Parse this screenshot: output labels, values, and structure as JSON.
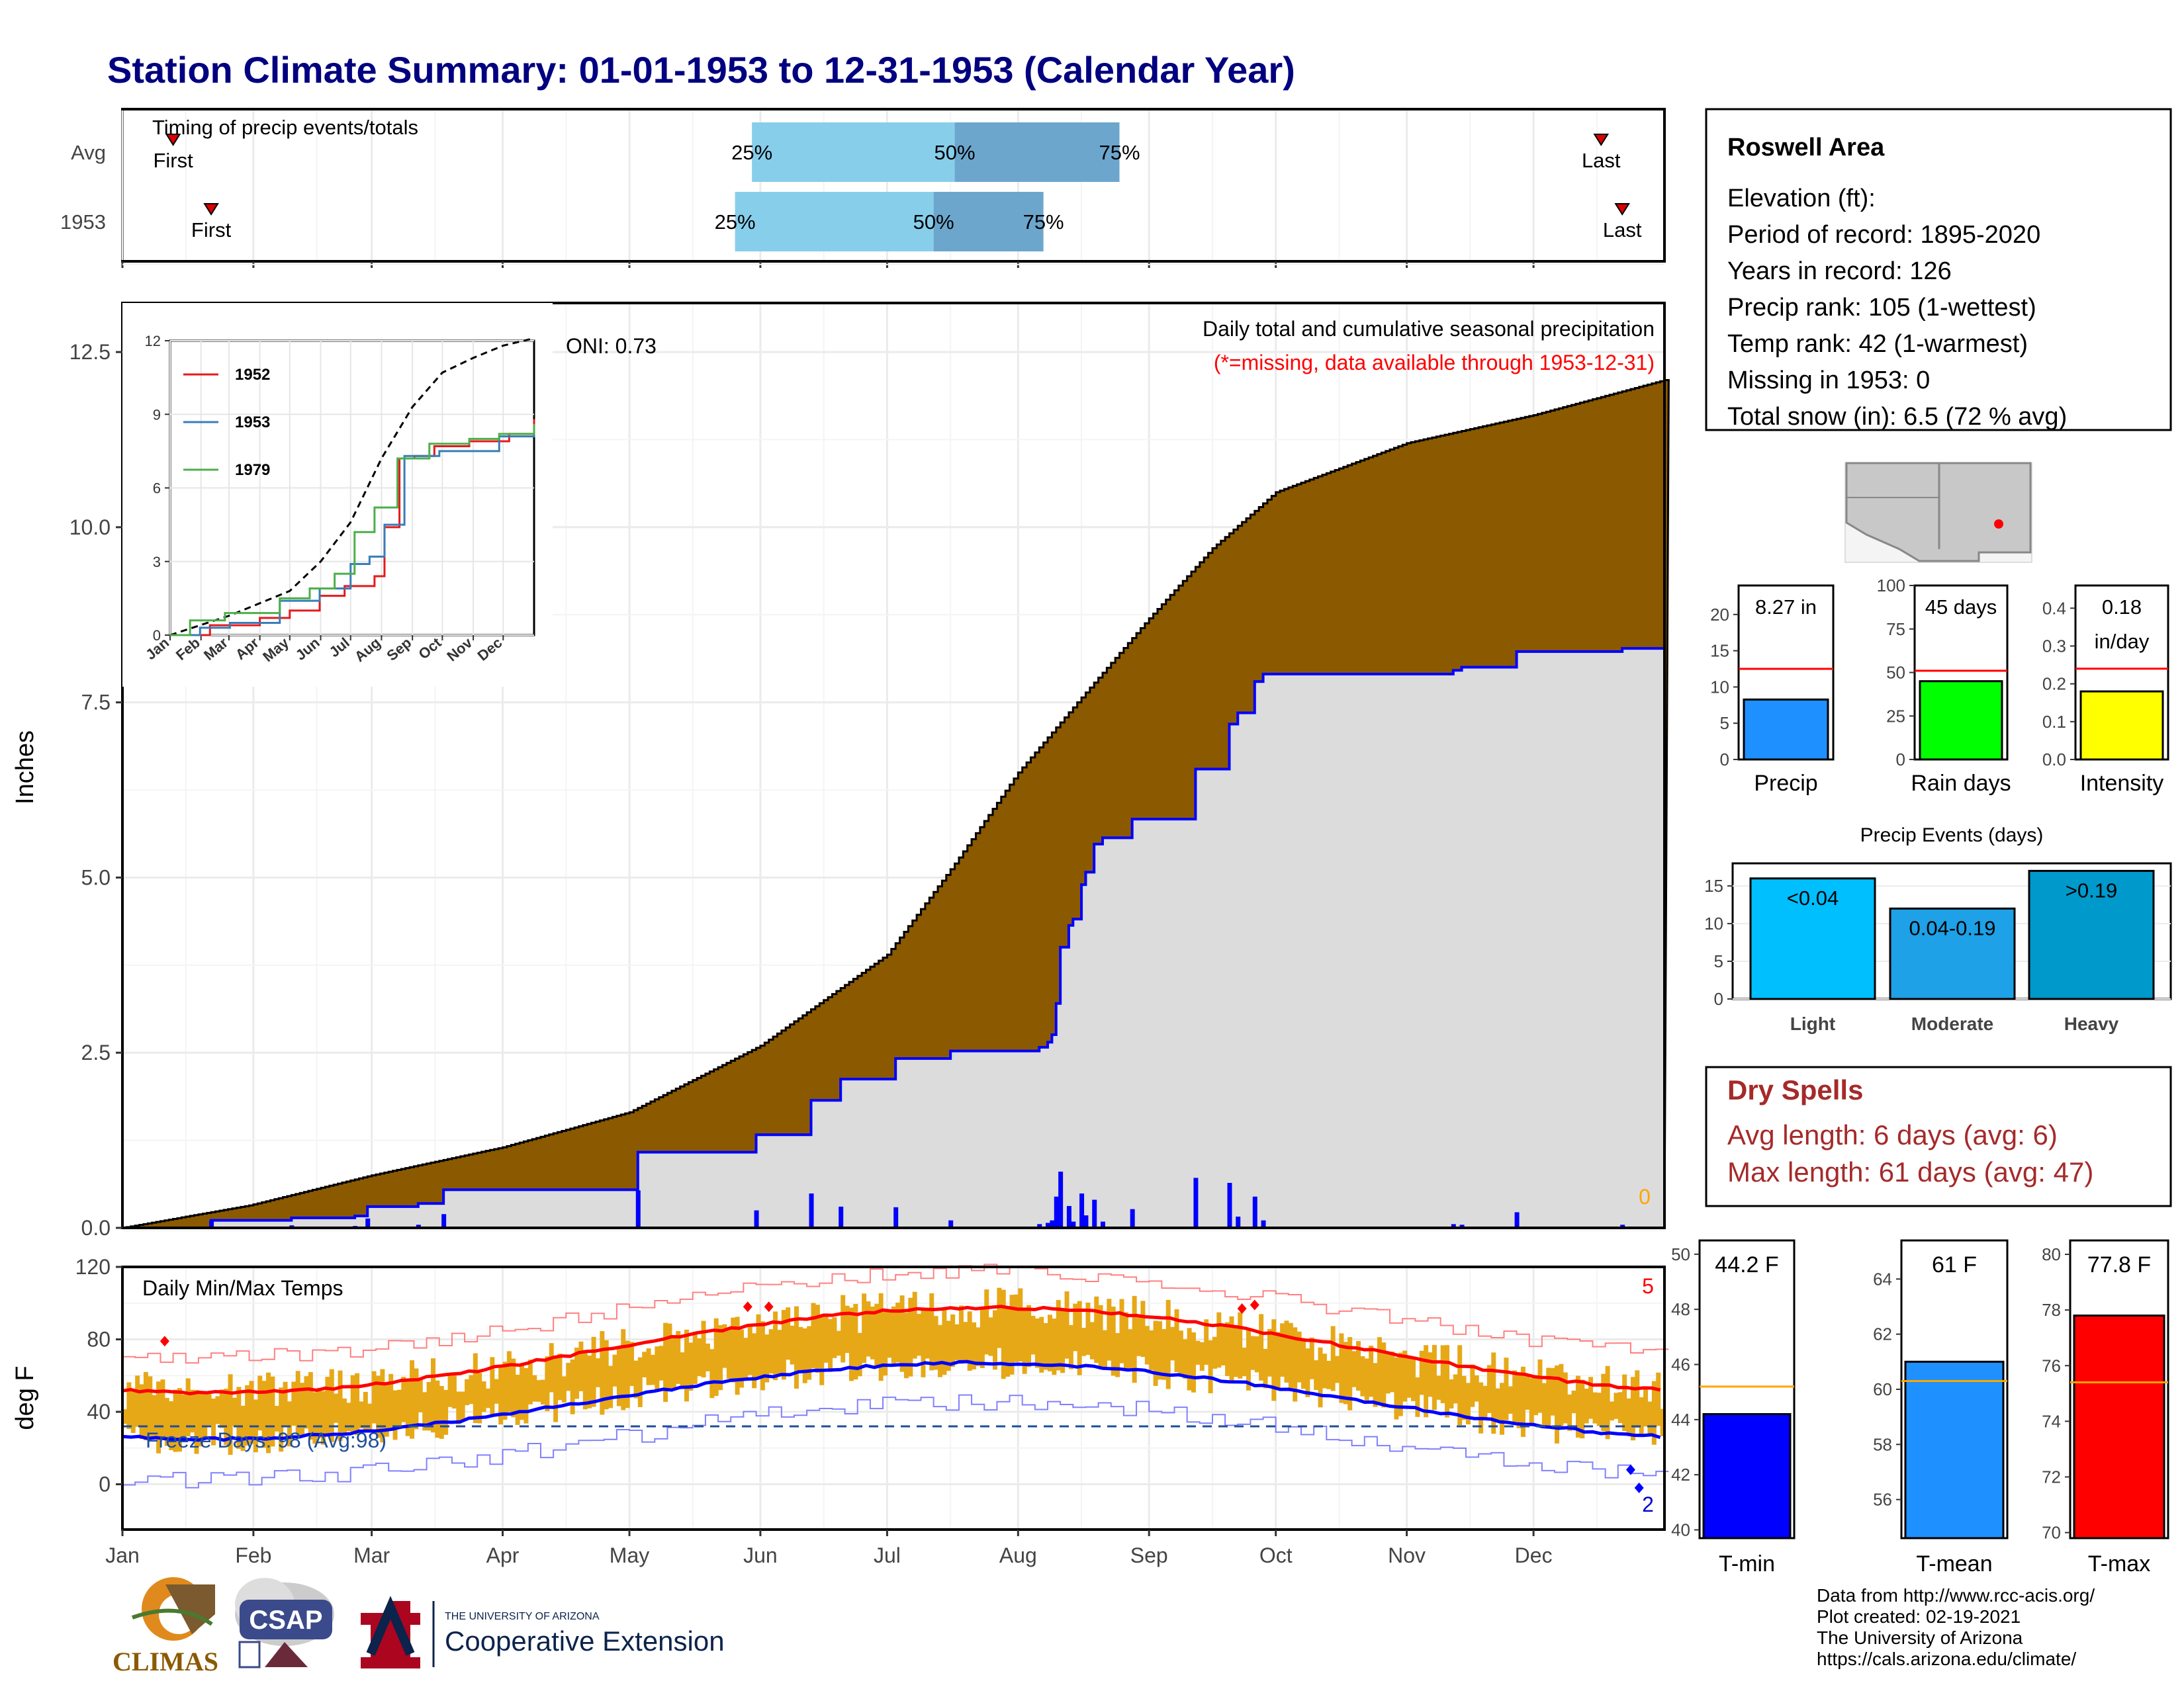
{
  "title": "Station Climate Summary: 01-01-1953 to 12-31-1953 (Calendar Year)",
  "colors": {
    "title": "#000080",
    "precip_fill": "#8B5A00",
    "avg_fill": "#DCDCDC",
    "daily_bar": "#0000FF",
    "temp_bar": "#E6A817",
    "dry_spell": "#A52A2A",
    "q_light": "#87CEEB",
    "q_dark": "#6CA6CD"
  },
  "timing": {
    "label": "Timing of precip events/totals",
    "rows": [
      {
        "name": "Avg",
        "first_doy": 12,
        "last_doy": 350,
        "q25_doy": 149,
        "q50_doy": 197,
        "q75_doy": 236
      },
      {
        "name": "1953",
        "first_doy": 21,
        "last_doy": 355,
        "q25_doy": 145,
        "q50_doy": 192,
        "q75_doy": 218
      }
    ],
    "first_label": "First",
    "last_label": "Last",
    "q_labels": [
      "25%",
      "50%",
      "75%"
    ]
  },
  "precip_chart": {
    "ylabel": "Inches",
    "yticks": [
      "0.0",
      "2.5",
      "5.0",
      "7.5",
      "10.0",
      "12.5"
    ],
    "ylim": [
      0,
      13.2
    ],
    "caption1": "Daily total and cumulative seasonal precipitation",
    "caption2": "(*=missing, data available through 1953-12-31)",
    "oni": "ONI: 0.73",
    "zero_label": "0"
  },
  "inset": {
    "yticks": [
      "0",
      "3",
      "6",
      "9",
      "12"
    ],
    "months": [
      "Jan",
      "Feb",
      "Mar",
      "Apr",
      "May",
      "Jun",
      "Jul",
      "Aug",
      "Sep",
      "Oct",
      "Nov",
      "Dec"
    ],
    "legend": [
      {
        "name": "1952",
        "color": "#E41A1C"
      },
      {
        "name": "1953",
        "color": "#377EB8"
      },
      {
        "name": "1979",
        "color": "#4DAF4A"
      }
    ]
  },
  "temp_chart": {
    "label": "Daily Min/Max Temps",
    "ylabel": "deg F",
    "yticks": [
      "0",
      "40",
      "80",
      "120"
    ],
    "ylim": [
      -25,
      120
    ],
    "freeze_label": "Freeze Days: 98 (Avg:98)",
    "record_high_count": "5",
    "record_low_count": "2"
  },
  "months": [
    "Jan",
    "Feb",
    "Mar",
    "Apr",
    "May",
    "Jun",
    "Jul",
    "Aug",
    "Sep",
    "Oct",
    "Nov",
    "Dec"
  ],
  "info_box": {
    "title": "Roswell Area",
    "lines": [
      "Elevation (ft):",
      "Period of record: 1895-2020",
      "Years in record: 126",
      "Precip rank: 105 (1-wettest)",
      "Temp rank: 42 (1-warmest)",
      "Missing in 1953: 0",
      "Total snow (in): 6.5 (72 % avg)"
    ]
  },
  "mini_bars": [
    {
      "name": "Precip",
      "value": 8.27,
      "avg": 12.5,
      "ymax": 24,
      "yticks": [
        "0",
        "5",
        "10",
        "15",
        "20"
      ],
      "label": "8.27 in",
      "color": "#1E90FF"
    },
    {
      "name": "Rain days",
      "value": 45,
      "avg": 51,
      "ymax": 100,
      "yticks": [
        "0",
        "25",
        "50",
        "75",
        "100"
      ],
      "label": "45 days",
      "color": "#00FF00"
    },
    {
      "name": "Intensity",
      "value": 0.18,
      "avg": 0.24,
      "ymax": 0.46,
      "yticks": [
        "0.0",
        "0.1",
        "0.2",
        "0.3",
        "0.4"
      ],
      "label": "0.18",
      "label2": "in/day",
      "color": "#FFFF00"
    }
  ],
  "precip_events": {
    "title": "Precip Events (days)",
    "yticks": [
      "0",
      "5",
      "10",
      "15"
    ],
    "ymax": 18,
    "bars": [
      {
        "name": "Light",
        "value": 16,
        "label": "<0.04",
        "color": "#00BFFF"
      },
      {
        "name": "Moderate",
        "value": 12,
        "label": "0.04-0.19",
        "color": "#1EA1E6"
      },
      {
        "name": "Heavy",
        "value": 17,
        "label": ">0.19",
        "color": "#0099CC"
      }
    ]
  },
  "dry_spells": {
    "title": "Dry Spells",
    "avg_line": "Avg length: 6 days (avg: 6)",
    "max_line": "Max length: 61 days (avg: 47)"
  },
  "temp_bars": [
    {
      "name": "T-min",
      "value": 44.2,
      "avg": 45.2,
      "ymin": 39.7,
      "ymax": 50.5,
      "yticks": [
        "40",
        "42",
        "44",
        "46",
        "48",
        "50"
      ],
      "label": "44.2 F",
      "color": "#0000FF"
    },
    {
      "name": "T-mean",
      "value": 61.0,
      "avg": 60.3,
      "ymin": 54.6,
      "ymax": 65.4,
      "yticks": [
        "56",
        "58",
        "60",
        "62",
        "64"
      ],
      "label": "61 F",
      "color": "#1E90FF"
    },
    {
      "name": "T-max",
      "value": 77.8,
      "avg": 75.4,
      "ymin": 69.8,
      "ymax": 80.5,
      "yticks": [
        "70",
        "72",
        "74",
        "76",
        "78",
        "80"
      ],
      "label": "77.8 F",
      "color": "#FF0000"
    }
  ],
  "footer": [
    "Data from http://www.rcc-acis.org/",
    "Plot created: 02-19-2021",
    "The University of Arizona",
    "https://cals.arizona.edu/climate/"
  ],
  "logos": {
    "climas": "CLIMAS",
    "csap": "CSAP",
    "ua_small": "THE UNIVERSITY OF ARIZONA",
    "ua_big": "Cooperative Extension"
  }
}
